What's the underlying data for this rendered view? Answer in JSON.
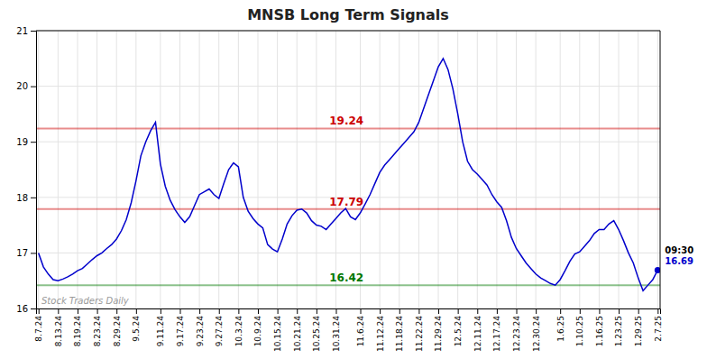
{
  "chart_data": {
    "type": "line",
    "title": "MNSB Long Term Signals",
    "color": "#0000cc",
    "ylim": [
      16.0,
      21.0
    ],
    "yticks": [
      16,
      17,
      18,
      19,
      20,
      21
    ],
    "grid": true,
    "watermark": "Stock Traders Daily",
    "reference_lines": [
      {
        "value": 19.24,
        "color": "#cc0000"
      },
      {
        "value": 17.79,
        "color": "#cc0000"
      },
      {
        "value": 16.42,
        "color": "#007700"
      }
    ],
    "annotations": [
      {
        "text": "09:30",
        "color": "#000000"
      },
      {
        "text": "16.69",
        "color": "#0000cc"
      }
    ],
    "categories": [
      "8.7.24",
      null,
      null,
      null,
      "8.13.24",
      null,
      null,
      null,
      "8.19.24",
      null,
      null,
      null,
      "8.23.24",
      null,
      null,
      null,
      "8.29.24",
      null,
      null,
      null,
      "9.5.24",
      null,
      null,
      null,
      null,
      "9.11.24",
      null,
      null,
      null,
      "9.17.24",
      null,
      null,
      null,
      "9.23.24",
      null,
      null,
      null,
      "9.27.24",
      null,
      null,
      null,
      "10.3.24",
      null,
      null,
      null,
      "10.9.24",
      null,
      null,
      null,
      "10.15.24",
      null,
      null,
      null,
      "10.21.24",
      null,
      null,
      null,
      "10.25.24",
      null,
      null,
      null,
      "10.31.24",
      null,
      null,
      null,
      null,
      "11.6.24",
      null,
      null,
      null,
      "11.12.24",
      null,
      null,
      null,
      "11.18.24",
      null,
      null,
      null,
      "11.22.24",
      null,
      null,
      null,
      "11.29.24",
      null,
      null,
      null,
      "12.5.24",
      null,
      null,
      null,
      "12.11.24",
      null,
      null,
      null,
      "12.17.24",
      null,
      null,
      null,
      "12.23.24",
      null,
      null,
      null,
      "12.30.24",
      null,
      null,
      null,
      null,
      "1.6.25",
      null,
      null,
      null,
      "1.10.25",
      null,
      null,
      null,
      "1.16.25",
      null,
      null,
      null,
      "1.23.25",
      null,
      null,
      null,
      "1.29.25",
      null,
      null,
      null,
      "2.7.25"
    ],
    "values": [
      17.0,
      16.75,
      16.62,
      16.52,
      16.5,
      16.53,
      16.57,
      16.62,
      16.68,
      16.72,
      16.8,
      16.88,
      16.95,
      17.0,
      17.08,
      17.15,
      17.25,
      17.4,
      17.6,
      17.9,
      18.3,
      18.75,
      19.0,
      19.2,
      19.35,
      18.6,
      18.2,
      17.95,
      17.78,
      17.65,
      17.55,
      17.65,
      17.85,
      18.05,
      18.1,
      18.15,
      18.05,
      17.98,
      18.25,
      18.5,
      18.62,
      18.55,
      18.0,
      17.75,
      17.62,
      17.52,
      17.45,
      17.15,
      17.07,
      17.02,
      17.25,
      17.52,
      17.67,
      17.77,
      17.79,
      17.72,
      17.58,
      17.5,
      17.48,
      17.42,
      17.52,
      17.62,
      17.72,
      17.8,
      17.65,
      17.6,
      17.72,
      17.88,
      18.05,
      18.25,
      18.45,
      18.58,
      18.68,
      18.78,
      18.88,
      18.98,
      19.08,
      19.18,
      19.35,
      19.6,
      19.85,
      20.1,
      20.35,
      20.5,
      20.3,
      19.95,
      19.5,
      19.0,
      18.65,
      18.5,
      18.42,
      18.32,
      18.22,
      18.05,
      17.92,
      17.82,
      17.58,
      17.28,
      17.08,
      16.95,
      16.82,
      16.72,
      16.62,
      16.55,
      16.5,
      16.45,
      16.42,
      16.52,
      16.68,
      16.85,
      16.98,
      17.02,
      17.12,
      17.22,
      17.35,
      17.42,
      17.42,
      17.52,
      17.58,
      17.42,
      17.22,
      17.0,
      16.82,
      16.55,
      16.32,
      16.42,
      16.52,
      16.69
    ]
  }
}
